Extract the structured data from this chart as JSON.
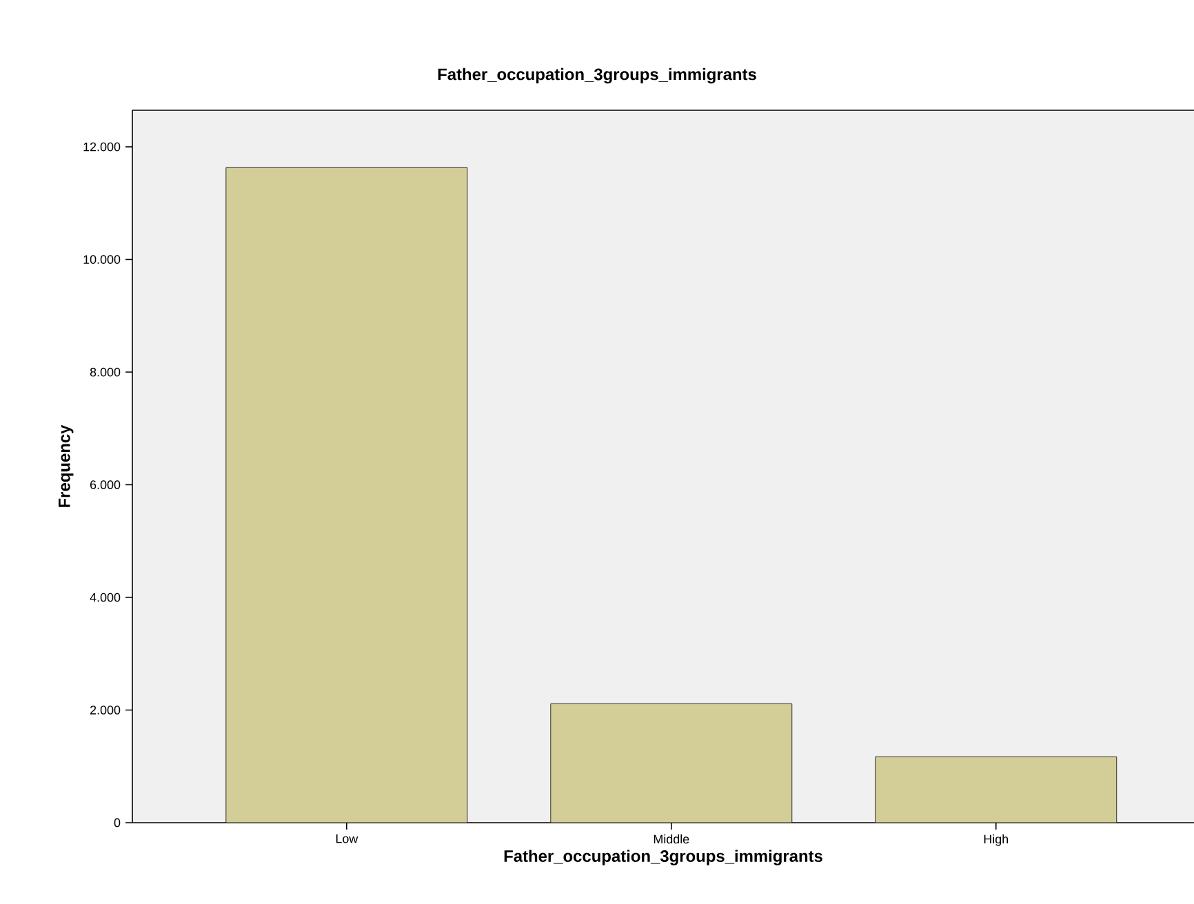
{
  "chart_data": {
    "type": "bar",
    "title": "Father_occupation_3groups_immigrants",
    "xlabel": "Father_occupation_3groups_immigrants",
    "ylabel": "Frequency",
    "categories": [
      "Low",
      "Middle",
      "High"
    ],
    "values": [
      11630,
      2110,
      1170
    ],
    "color": "#d3ce97",
    "ylim": [
      0,
      12650
    ],
    "yticks": [
      0,
      {
        "value": 2000,
        "label": "2.000"
      },
      {
        "value": 4000,
        "label": "4.000"
      },
      {
        "value": 6000,
        "label": "6.000"
      },
      {
        "value": 8000,
        "label": "8.000"
      },
      {
        "value": 10000,
        "label": "10.000"
      },
      {
        "value": 12000,
        "label": "12.000"
      }
    ],
    "grid": false
  }
}
